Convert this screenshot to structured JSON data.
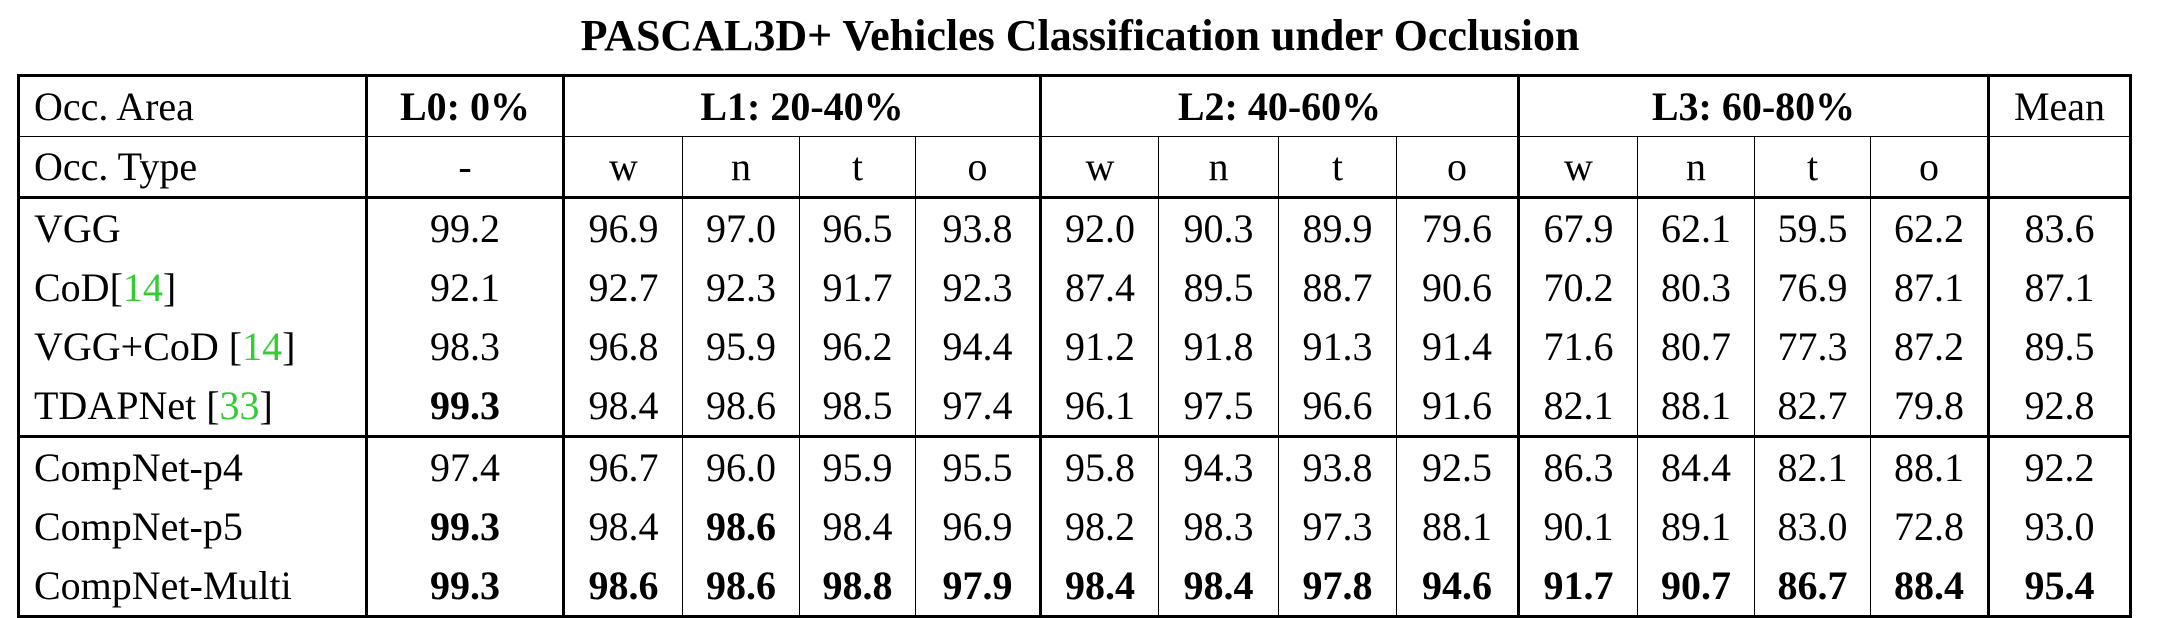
{
  "title": "PASCAL3D+ Vehicles Classification under Occlusion",
  "header1": {
    "label": "Occ. Area",
    "groups": [
      "L0: 0%",
      "L1: 20-40%",
      "L2: 40-60%",
      "L3: 60-80%"
    ],
    "mean": "Mean"
  },
  "header2": {
    "label": "Occ. Type",
    "types": [
      "-",
      "w",
      "n",
      "t",
      "o",
      "w",
      "n",
      "t",
      "o",
      "w",
      "n",
      "t",
      "o",
      ""
    ]
  },
  "rows": [
    {
      "name": "VGG",
      "ref": "",
      "values": [
        "99.2",
        "96.9",
        "97.0",
        "96.5",
        "93.8",
        "92.0",
        "90.3",
        "89.9",
        "79.6",
        "67.9",
        "62.1",
        "59.5",
        "62.2",
        "83.6"
      ],
      "bold": []
    },
    {
      "name": "CoD",
      "ref": "14",
      "values": [
        "92.1",
        "92.7",
        "92.3",
        "91.7",
        "92.3",
        "87.4",
        "89.5",
        "88.7",
        "90.6",
        "70.2",
        "80.3",
        "76.9",
        "87.1",
        "87.1"
      ],
      "bold": []
    },
    {
      "name": "VGG+CoD ",
      "ref": "14",
      "values": [
        "98.3",
        "96.8",
        "95.9",
        "96.2",
        "94.4",
        "91.2",
        "91.8",
        "91.3",
        "91.4",
        "71.6",
        "80.7",
        "77.3",
        "87.2",
        "89.5"
      ],
      "bold": []
    },
    {
      "name": "TDAPNet ",
      "ref": "33",
      "values": [
        "99.3",
        "98.4",
        "98.6",
        "98.5",
        "97.4",
        "96.1",
        "97.5",
        "96.6",
        "91.6",
        "82.1",
        "88.1",
        "82.7",
        "79.8",
        "92.8"
      ],
      "bold": [
        0
      ]
    },
    {
      "name": "CompNet-p4",
      "ref": "",
      "values": [
        "97.4",
        "96.7",
        "96.0",
        "95.9",
        "95.5",
        "95.8",
        "94.3",
        "93.8",
        "92.5",
        "86.3",
        "84.4",
        "82.1",
        "88.1",
        "92.2"
      ],
      "bold": []
    },
    {
      "name": "CompNet-p5",
      "ref": "",
      "values": [
        "99.3",
        "98.4",
        "98.6",
        "98.4",
        "96.9",
        "98.2",
        "98.3",
        "97.3",
        "88.1",
        "90.1",
        "89.1",
        "83.0",
        "72.8",
        "93.0"
      ],
      "bold": [
        0,
        2
      ]
    },
    {
      "name": "CompNet-Multi",
      "ref": "",
      "values": [
        "99.3",
        "98.6",
        "98.6",
        "98.8",
        "97.9",
        "98.4",
        "98.4",
        "97.8",
        "94.6",
        "91.7",
        "90.7",
        "86.7",
        "88.4",
        "95.4"
      ],
      "bold": [
        0,
        1,
        2,
        3,
        4,
        5,
        6,
        7,
        8,
        9,
        10,
        11,
        12,
        13
      ]
    }
  ]
}
